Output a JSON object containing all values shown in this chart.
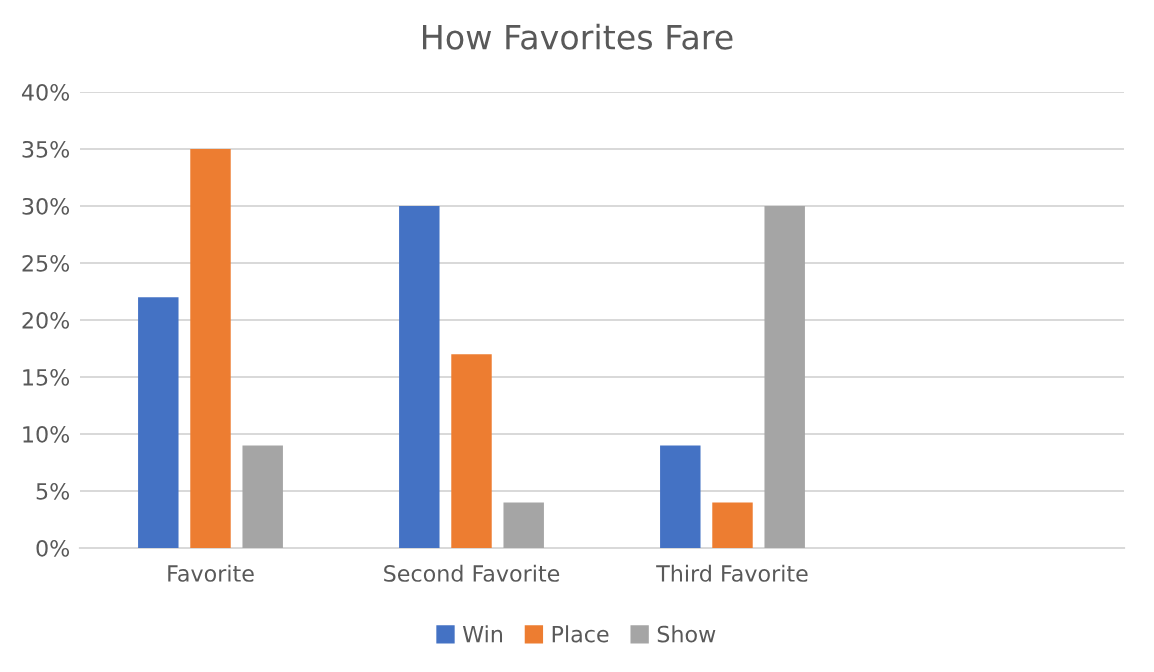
{
  "chart_data": {
    "type": "bar",
    "title": "How Favorites Fare",
    "categories": [
      "Favorite",
      "Second Favorite",
      "Third Favorite",
      null
    ],
    "series": [
      {
        "name": "Win",
        "color": "#4472c4",
        "values": [
          22,
          30,
          9,
          null
        ]
      },
      {
        "name": "Place",
        "color": "#ed7d31",
        "values": [
          35,
          17,
          4,
          null
        ]
      },
      {
        "name": "Show",
        "color": "#a5a5a5",
        "values": [
          9,
          4,
          30,
          null
        ]
      }
    ],
    "ylim": [
      0,
      40
    ],
    "yticks": [
      {
        "value": 0,
        "label": "0%"
      },
      {
        "value": 5,
        "label": "5%"
      },
      {
        "value": 10,
        "label": "10%"
      },
      {
        "value": 15,
        "label": "15%"
      },
      {
        "value": 20,
        "label": "20%"
      },
      {
        "value": 25,
        "label": "25%"
      },
      {
        "value": 30,
        "label": "30%"
      },
      {
        "value": 35,
        "label": "35%"
      },
      {
        "value": 40,
        "label": "40%"
      }
    ],
    "grid": "y",
    "legend": "bottom"
  }
}
